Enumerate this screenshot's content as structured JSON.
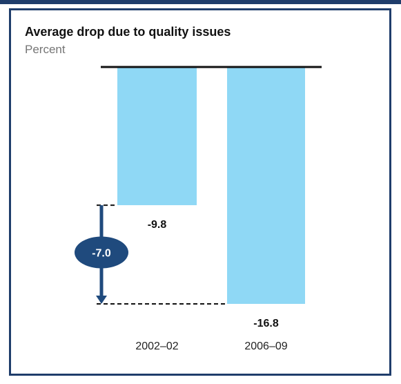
{
  "colors": {
    "frame": "#1f3d6b",
    "bar": "#8fd8f5",
    "baseline": "#111111",
    "marker": "#1f4a7d"
  },
  "chart_data": {
    "type": "bar",
    "title": "Average drop due to quality issues",
    "subtitle": "Percent",
    "categories": [
      "2002–02",
      "2006–09"
    ],
    "values": [
      -9.8,
      -16.8
    ],
    "value_labels": [
      "-9.8",
      "-16.8"
    ],
    "ylim": [
      -16.8,
      0
    ],
    "grid": false,
    "legend": "none",
    "difference": {
      "value": -7.0,
      "label": "-7.0",
      "from_category": 0,
      "to_category": 1
    }
  }
}
